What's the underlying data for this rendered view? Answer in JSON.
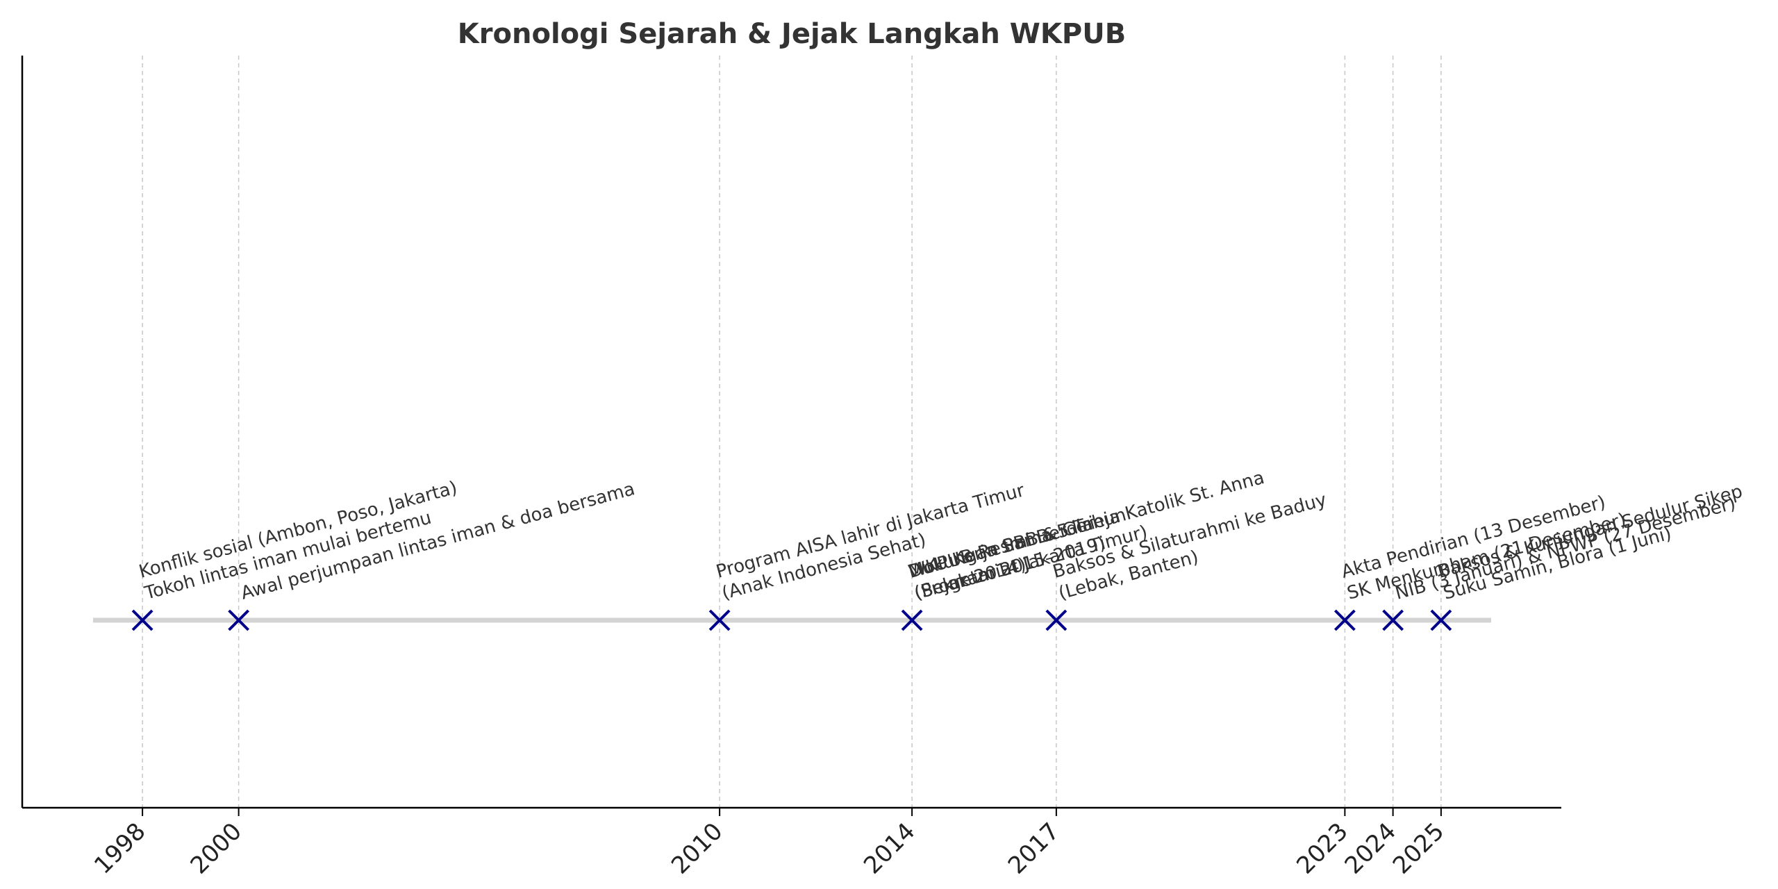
{
  "chart_data": {
    "type": "scatter",
    "title": "Kronologi Sejarah & Jejak Langkah WKPUB",
    "xlabel": "",
    "ylabel": "",
    "xlim": [
      1995.5,
      2027.5
    ],
    "ticks": [
      "1998",
      "2000",
      "2010",
      "2014",
      "2017",
      "2023",
      "2024",
      "2025"
    ],
    "grid": "vertical dashed at ticks",
    "marker": "x",
    "colors": {
      "marker": "#00008b",
      "timeline": "#d3d3d3",
      "grid": "#c8c8c8",
      "axis": "#000000",
      "text": "#333333"
    },
    "events": [
      {
        "x": 1998,
        "lines": [
          "Konflik sosial (Ambon, Poso, Jakarta)",
          "Tokoh lintas iman mulai bertemu"
        ]
      },
      {
        "x": 2000,
        "lines": [
          "Awal perjumpaan lintas iman & doa bersama"
        ]
      },
      {
        "x": 2010,
        "lines": [
          "Program AISA lahir di Jakarta Timur",
          "(Anak Indonesia Sehat)"
        ]
      },
      {
        "x": 2014,
        "lines": [
          "Dukungan PBB & Gereja Katolik St. Anna",
          "(Sekretariat Jakarta Timur)"
        ]
      },
      {
        "x": 2014,
        "lines": [
          "MoU Kerja Sama 5 Tahun",
          "(Program 2015–2019)"
        ]
      },
      {
        "x": 2014,
        "lines": [
          "WKPUB Resmi Berdiri",
          "(Sejak 2014)"
        ]
      },
      {
        "x": 2017,
        "lines": [
          "Baksos & Silaturahmi ke Baduy",
          "(Lebak, Banten)"
        ]
      },
      {
        "x": 2023,
        "lines": [
          "Akta Pendirian (13 Desember)",
          "SK Menkumham (21 Desember)"
        ]
      },
      {
        "x": 2024,
        "lines": [
          "NIB (3 Januari) & NPWP (27 Desember)"
        ]
      },
      {
        "x": 2025,
        "lines": [
          "Baksos & Kunjungan Sedulur Sikep",
          "Suku Samin, Blora (1 Juni)"
        ]
      }
    ]
  }
}
